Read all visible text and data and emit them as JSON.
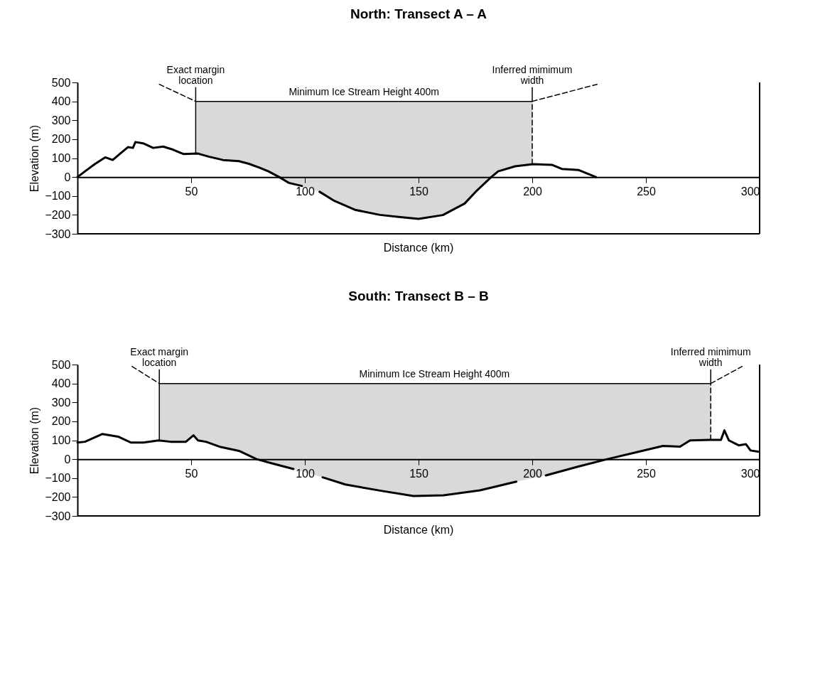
{
  "chart_data": [
    {
      "type": "line",
      "title": "North: Transect A – A",
      "xlabel": "Distance (km)",
      "ylabel": "Elevation (m)",
      "xlim": [
        0,
        300
      ],
      "xticks": [
        50,
        100,
        150,
        200,
        250,
        300
      ],
      "ylim": [
        -300,
        500
      ],
      "yticks": [
        -300,
        -200,
        -100,
        0,
        100,
        200,
        300,
        400,
        500
      ],
      "grid": false,
      "legend": false,
      "series": [
        {
          "type": "line",
          "color": "#000000",
          "line_style": "solid",
          "x": [
            52,
            52,
            53,
            57.7,
            64,
            71,
            75.4,
            80,
            84,
            88.7,
            93,
            98.7,
            106.5,
            113,
            122,
            133,
            142,
            150,
            160.7,
            170.3,
            175.6,
            182,
            185,
            192.5,
            200
          ],
          "values": [
            124,
            400,
            400,
            400,
            400,
            400,
            400,
            400,
            400,
            400,
            400,
            400,
            400,
            400,
            400,
            400,
            400,
            400,
            400,
            400,
            400,
            400,
            400,
            400,
            400
          ],
          "lower": [
            124,
            124,
            124,
            108,
            90,
            84,
            70,
            50,
            30,
            0,
            -31,
            -47,
            -78,
            -126,
            -173,
            -200,
            -212,
            -221,
            -201,
            -140,
            -72,
            0,
            30,
            57,
            68
          ],
          "upper": [
            124,
            400,
            400,
            400,
            400,
            400,
            400,
            400,
            400,
            400,
            400,
            400,
            400,
            400,
            400,
            400,
            400,
            400,
            400,
            400,
            400,
            400,
            400,
            400,
            400
          ]
        },
        {
          "color": "#000000",
          "x": [
            0,
            3.3,
            7.8,
            12.2,
            15.5,
            18.8,
            22.2,
            24.4,
            25.5,
            28.9,
            33.3,
            37.7,
            42,
            46.6,
            53,
            57.7,
            64,
            71,
            75.4,
            80,
            84,
            88.7,
            93,
            98.7,
            102,
            106.5,
            113,
            122,
            133,
            142,
            150,
            160.7,
            170.3,
            175.6,
            182,
            185,
            192.5,
            200.3,
            208.8,
            213,
            220.5,
            228
          ],
          "values": [
            0,
            30,
            70,
            104,
            90,
            124,
            158,
            154,
            185,
            178,
            154,
            161,
            145,
            122,
            124,
            108,
            90,
            84,
            70,
            50,
            30,
            0,
            -31,
            -47,
            null,
            -78,
            -126,
            -173,
            -200,
            -212,
            -221,
            -201,
            -140,
            -72,
            0,
            30,
            57,
            68,
            64,
            43,
            37,
            0
          ]
        },
        {
          "type": "line",
          "color": "#000000",
          "line_style": "dashed",
          "x": [
            200,
            200
          ],
          "values": [
            68,
            400
          ]
        },
        {
          "type": "line",
          "color": "#000000",
          "line_style": "dashed",
          "x": [
            36,
            52
          ],
          "values": [
            490,
            400
          ]
        },
        {
          "type": "line",
          "color": "#000000",
          "line_style": "dashed",
          "x": [
            200,
            228.5
          ],
          "values": [
            400,
            490
          ]
        }
      ],
      "annotations": [
        {
          "text": "Exact margin\nlocation",
          "x": 52,
          "y": 400
        },
        {
          "text": "Inferred mimimum\nwidth",
          "x": 200,
          "y": 400
        },
        {
          "text": "Minimum Ice Stream Height 400m",
          "x": 126,
          "y": 400
        }
      ]
    },
    {
      "type": "line",
      "title": "South: Transect B – B",
      "xlabel": "Distance (km)",
      "ylabel": "Elevation (m)",
      "xlim": [
        0,
        300
      ],
      "xticks": [
        50,
        100,
        150,
        200,
        250,
        300
      ],
      "ylim": [
        -300,
        500
      ],
      "yticks": [
        -300,
        -200,
        -100,
        0,
        100,
        200,
        300,
        400,
        500
      ],
      "grid": false,
      "legend": false,
      "series": [
        {
          "type": "line",
          "color": "#000000",
          "line_style": "solid",
          "x": [
            36,
            36,
            41,
            47.7,
            51,
            53,
            56.5,
            63,
            71,
            75.5,
            78.8,
            85.5,
            95,
            107.8,
            117.8,
            134,
            147.8,
            161,
            177,
            193,
            206,
            220,
            233,
            247,
            257.5,
            265,
            269.4,
            278.5
          ],
          "values": [
            99,
            400,
            400,
            400,
            400,
            400,
            400,
            400,
            400,
            400,
            400,
            400,
            400,
            400,
            400,
            400,
            400,
            400,
            400,
            400,
            400,
            400,
            400,
            400,
            400,
            400,
            400,
            400
          ],
          "lower": [
            99,
            99,
            92,
            92,
            126,
            99,
            92,
            64,
            44,
            19,
            0,
            -22,
            -52,
            -96,
            -134,
            -168,
            -195,
            -191,
            -165,
            -119,
            -86,
            -40,
            0,
            40,
            70,
            66,
            99,
            102
          ],
          "upper": [
            99,
            400,
            400,
            400,
            400,
            400,
            400,
            400,
            400,
            400,
            400,
            400,
            400,
            400,
            400,
            400,
            400,
            400,
            400,
            400,
            400,
            400,
            400,
            400,
            400,
            400,
            400,
            400
          ]
        },
        {
          "color": "#000000",
          "x": [
            0,
            3.3,
            11,
            17.9,
            23.4,
            29,
            35.7,
            41,
            47.7,
            51,
            53,
            56.5,
            63,
            71,
            75.5,
            78.8,
            85.5,
            95,
            101,
            107.8,
            117.8,
            134,
            147.8,
            161,
            177,
            193,
            200,
            206,
            220,
            233,
            247,
            257.5,
            265,
            269.4,
            278,
            283,
            284.5,
            286.5,
            290.8,
            294,
            296,
            299.3
          ],
          "values": [
            88,
            92,
            133,
            119,
            88,
            88,
            99,
            92,
            92,
            126,
            99,
            92,
            64,
            44,
            19,
            0,
            -22,
            -52,
            null,
            -96,
            -134,
            -168,
            -195,
            -191,
            -165,
            -119,
            null,
            -86,
            -40,
            0,
            40,
            70,
            66,
            99,
            102,
            102,
            152,
            99,
            73,
            79,
            46,
            40
          ]
        },
        {
          "type": "line",
          "color": "#000000",
          "line_style": "dashed",
          "x": [
            278.5,
            278.5
          ],
          "values": [
            102,
            400
          ]
        },
        {
          "type": "line",
          "color": "#000000",
          "line_style": "dashed",
          "x": [
            24,
            36
          ],
          "values": [
            490,
            400
          ]
        },
        {
          "type": "line",
          "color": "#000000",
          "line_style": "dashed",
          "x": [
            278.5,
            292.3
          ],
          "values": [
            400,
            490
          ]
        }
      ],
      "annotations": [
        {
          "text": "Exact margin\nlocation",
          "x": 36,
          "y": 400
        },
        {
          "text": "Inferred mimimum\nwidth",
          "x": 278.5,
          "y": 400
        },
        {
          "text": "Minimum Ice Stream Height 400m",
          "x": 157,
          "y": 400
        }
      ]
    }
  ]
}
